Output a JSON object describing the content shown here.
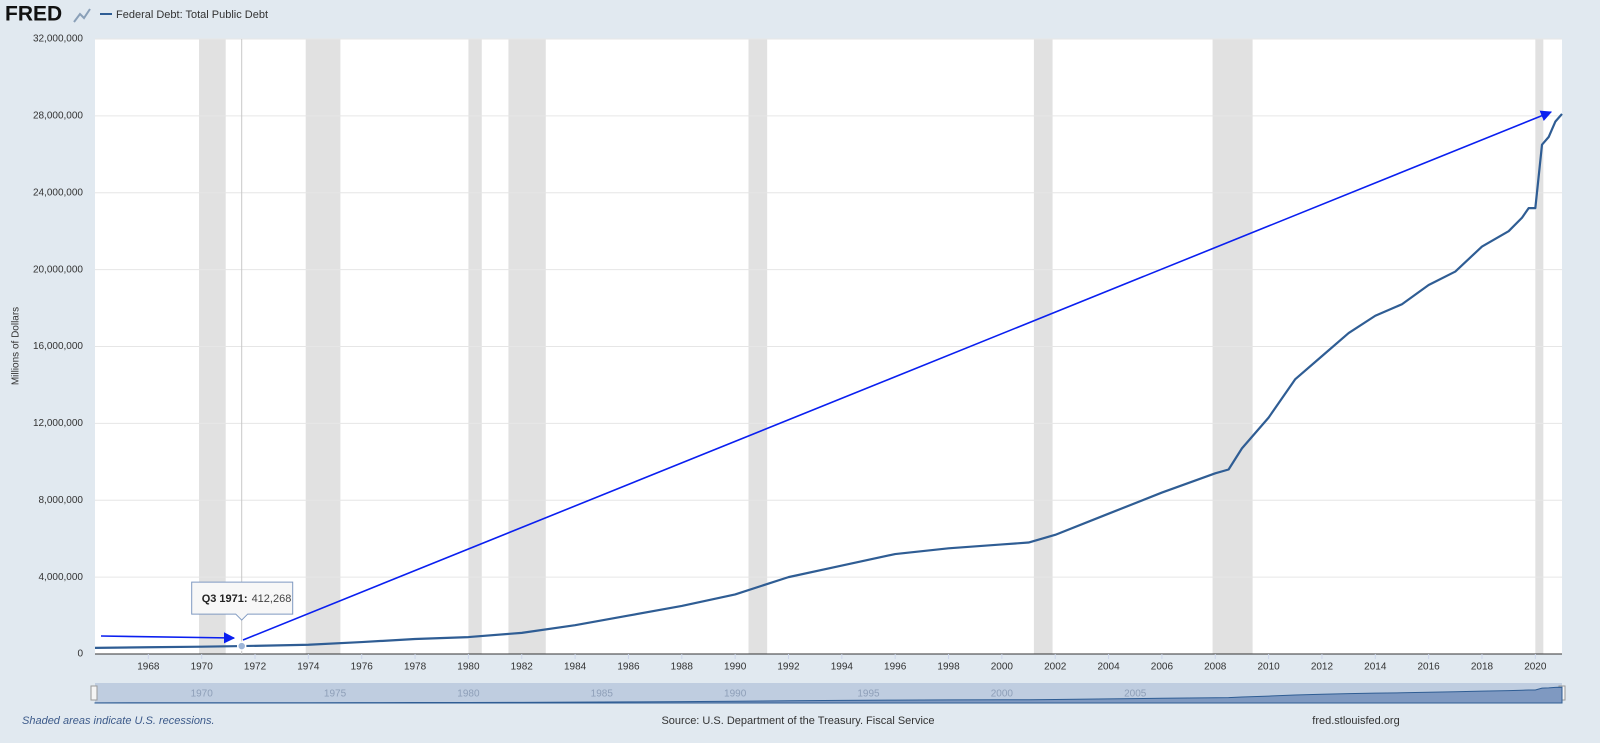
{
  "header": {
    "logo": "FRED"
  },
  "footer": {
    "note": "Shaded areas indicate U.S. recessions.",
    "source": "Source: U.S. Department of the Treasury. Fiscal Service",
    "site": "fred.stlouisfed.org"
  },
  "chart_data": {
    "type": "line",
    "y_label": "Millions of Dollars",
    "x": [
      1966,
      1968,
      1970,
      1971.5,
      1974,
      1976,
      1978,
      1980,
      1982,
      1984,
      1986,
      1988,
      1990,
      1992,
      1994,
      1996,
      1998,
      2000,
      2001,
      2002,
      2004,
      2006,
      2008,
      2008.5,
      2009,
      2010,
      2011,
      2012,
      2013,
      2014,
      2015,
      2016,
      2017,
      2018,
      2019,
      2019.5,
      2019.75,
      2020,
      2020.25,
      2020.5,
      2020.75,
      2021
    ],
    "series": [
      {
        "name": "Federal Debt: Total Public Debt",
        "color": "#2f5d94",
        "values": [
          320000,
          350000,
          380000,
          412268,
          480000,
          620000,
          780000,
          880000,
          1100000,
          1500000,
          2000000,
          2500000,
          3100000,
          4000000,
          4600000,
          5200000,
          5500000,
          5700000,
          5800000,
          6200000,
          7300000,
          8400000,
          9400000,
          9600000,
          10700000,
          12300000,
          14300000,
          15500000,
          16700000,
          17600000,
          18200000,
          19200000,
          19900000,
          21200000,
          22000000,
          22700000,
          23200000,
          23200000,
          26500000,
          26900000,
          27700000,
          28100000
        ]
      }
    ],
    "xlim": [
      1966,
      2021
    ],
    "ylim": [
      0,
      32000000
    ],
    "xticks": [
      1968,
      1970,
      1972,
      1974,
      1976,
      1978,
      1980,
      1982,
      1984,
      1986,
      1988,
      1990,
      1992,
      1994,
      1996,
      1998,
      2000,
      2002,
      2004,
      2006,
      2008,
      2010,
      2012,
      2014,
      2016,
      2018,
      2020
    ],
    "yticks": [
      0,
      {
        "value": 4000000,
        "label": "4,000,000"
      },
      {
        "value": 8000000,
        "label": "8,000,000"
      },
      {
        "value": 12000000,
        "label": "12,000,000"
      },
      {
        "value": 16000000,
        "label": "16,000,000"
      },
      {
        "value": 20000000,
        "label": "20,000,000"
      },
      {
        "value": 24000000,
        "label": "24,000,000"
      },
      {
        "value": 28000000,
        "label": "28,000,000"
      },
      {
        "value": 32000000,
        "label": "32,000,000"
      }
    ],
    "grid": true,
    "recessions": [
      [
        1969.9,
        1970.9
      ],
      [
        1973.9,
        1975.2
      ],
      [
        1980.0,
        1980.5
      ],
      [
        1981.5,
        1982.9
      ],
      [
        1990.5,
        1991.2
      ],
      [
        2001.2,
        2001.9
      ],
      [
        2007.9,
        2009.4
      ],
      [
        2020.0,
        2020.3
      ]
    ],
    "recession_color": "#e1e1e1",
    "tooltip": {
      "x": 1971.5,
      "value": 412268,
      "label": "Q3 1971:",
      "value_label": "412,268"
    },
    "navigator_ticks": [
      1970,
      1975,
      1980,
      1985,
      1990,
      1995,
      2000,
      2005
    ]
  }
}
